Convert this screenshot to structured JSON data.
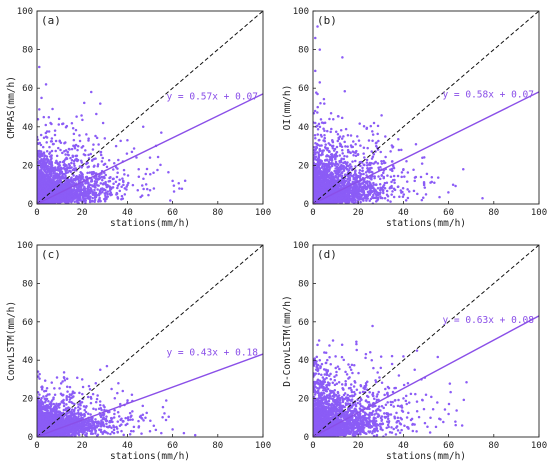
{
  "chart_data": [
    {
      "type": "scatter",
      "panel_label": "(a)",
      "xlabel": "stations(mm/h)",
      "ylabel": "CMPAS(mm/h)",
      "xlim": [
        0,
        100
      ],
      "ylim": [
        0,
        100
      ],
      "xticks": [
        0,
        20,
        40,
        60,
        80,
        100
      ],
      "yticks": [
        0,
        20,
        40,
        60,
        80,
        100
      ],
      "fit": {
        "slope": 0.57,
        "intercept": 0.07,
        "label": "y = 0.57x + 0.07"
      },
      "identity_line": true,
      "outliers": [
        [
          1,
          71
        ],
        [
          4,
          62
        ],
        [
          2,
          55
        ],
        [
          1,
          49
        ],
        [
          24,
          58
        ],
        [
          28,
          52
        ],
        [
          42,
          27
        ],
        [
          47,
          40
        ],
        [
          55,
          37
        ],
        [
          60,
          12
        ],
        [
          63,
          8
        ],
        [
          35,
          30
        ],
        [
          30,
          34
        ],
        [
          38,
          22
        ],
        [
          45,
          18
        ],
        [
          50,
          24
        ],
        [
          3,
          45
        ],
        [
          6,
          42
        ],
        [
          8,
          38
        ],
        [
          40,
          33
        ]
      ],
      "density": {
        "x_scale": 10,
        "y_scale": 9,
        "n": 2600,
        "seed": 11
      }
    },
    {
      "type": "scatter",
      "panel_label": "(b)",
      "xlabel": "stations(mm/h)",
      "ylabel": "OI(mm/h)",
      "xlim": [
        0,
        100
      ],
      "ylim": [
        0,
        100
      ],
      "xticks": [
        0,
        20,
        40,
        60,
        80,
        100
      ],
      "yticks": [
        0,
        20,
        40,
        60,
        80,
        100
      ],
      "fit": {
        "slope": 0.58,
        "intercept": 0.07,
        "label": "y = 0.58x + 0.07"
      },
      "identity_line": true,
      "outliers": [
        [
          2,
          92
        ],
        [
          1,
          86
        ],
        [
          3,
          80
        ],
        [
          13,
          76
        ],
        [
          1,
          69
        ],
        [
          3,
          63
        ],
        [
          2,
          57
        ],
        [
          5,
          52
        ],
        [
          8,
          47
        ],
        [
          1,
          42
        ],
        [
          35,
          22
        ],
        [
          40,
          18
        ],
        [
          45,
          12
        ],
        [
          62,
          10
        ],
        [
          75,
          3
        ],
        [
          38,
          28
        ],
        [
          32,
          35
        ],
        [
          28,
          30
        ],
        [
          50,
          5
        ],
        [
          27,
          42
        ]
      ],
      "density": {
        "x_scale": 10,
        "y_scale": 10,
        "n": 2600,
        "seed": 23
      }
    },
    {
      "type": "scatter",
      "panel_label": "(c)",
      "xlabel": "stations(mm/h)",
      "ylabel": "ConvLSTM(mm/h)",
      "xlim": [
        0,
        100
      ],
      "ylim": [
        0,
        100
      ],
      "xticks": [
        0,
        20,
        40,
        60,
        80,
        100
      ],
      "yticks": [
        0,
        20,
        40,
        60,
        80,
        100
      ],
      "fit": {
        "slope": 0.43,
        "intercept": 0.18,
        "label": "y = 0.43x + 0.18"
      },
      "identity_line": true,
      "outliers": [
        [
          2,
          26
        ],
        [
          4,
          24
        ],
        [
          20,
          30
        ],
        [
          26,
          28
        ],
        [
          33,
          25
        ],
        [
          36,
          28
        ],
        [
          42,
          22
        ],
        [
          32,
          13
        ],
        [
          38,
          8
        ],
        [
          45,
          5
        ],
        [
          50,
          3
        ],
        [
          55,
          2
        ],
        [
          60,
          4
        ],
        [
          40,
          18
        ],
        [
          28,
          35
        ],
        [
          8,
          22
        ],
        [
          24,
          20
        ],
        [
          48,
          10
        ],
        [
          65,
          2
        ],
        [
          70,
          1
        ]
      ],
      "density": {
        "x_scale": 9,
        "y_scale": 6,
        "n": 2600,
        "seed": 37
      }
    },
    {
      "type": "scatter",
      "panel_label": "(d)",
      "xlabel": "stations(mm/h)",
      "ylabel": "D-ConvLSTM(mm/h)",
      "xlim": [
        0,
        100
      ],
      "ylim": [
        0,
        100
      ],
      "xticks": [
        0,
        20,
        40,
        60,
        80,
        100
      ],
      "yticks": [
        0,
        20,
        40,
        60,
        80,
        100
      ],
      "fit": {
        "slope": 0.63,
        "intercept": 0.08,
        "label": "y = 0.63x + 0.08"
      },
      "identity_line": true,
      "outliers": [
        [
          2,
          48
        ],
        [
          5,
          44
        ],
        [
          10,
          42
        ],
        [
          26,
          40
        ],
        [
          30,
          36
        ],
        [
          35,
          38
        ],
        [
          40,
          42
        ],
        [
          45,
          35
        ],
        [
          48,
          30
        ],
        [
          50,
          22
        ],
        [
          55,
          18
        ],
        [
          60,
          12
        ],
        [
          63,
          8
        ],
        [
          42,
          28
        ],
        [
          38,
          32
        ],
        [
          32,
          25
        ],
        [
          46,
          45
        ],
        [
          3,
          40
        ],
        [
          52,
          10
        ],
        [
          66,
          6
        ]
      ],
      "density": {
        "x_scale": 10,
        "y_scale": 10,
        "n": 2600,
        "seed": 53
      }
    }
  ],
  "colors": {
    "points": "#8b5cf6",
    "fit_line": "#8a4fe8",
    "fit_label": "#8a4fe8",
    "identity_line": "#111111",
    "axis": "#222222"
  }
}
